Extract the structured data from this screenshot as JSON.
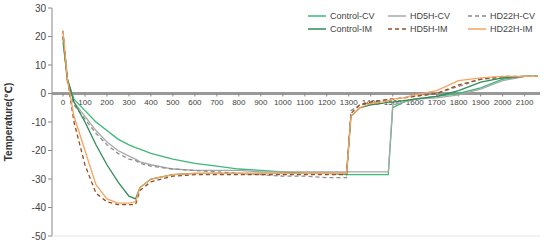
{
  "chart_data": {
    "type": "line",
    "y_label": "Temperature(℃)",
    "x": [
      0,
      20,
      50,
      100,
      150,
      200,
      250,
      300,
      330,
      350,
      400,
      500,
      600,
      700,
      800,
      900,
      1000,
      1100,
      1200,
      1290,
      1310,
      1350,
      1400,
      1450,
      1480,
      1500,
      1550,
      1600,
      1700,
      1800,
      1900,
      2000,
      2100,
      2160
    ],
    "xlim": [
      -50,
      2170
    ],
    "xticks": [
      0,
      100,
      200,
      300,
      400,
      500,
      600,
      700,
      800,
      900,
      1000,
      1100,
      1200,
      1300,
      1400,
      1500,
      1600,
      1700,
      1800,
      1900,
      2000,
      2100
    ],
    "ylim": [
      -50,
      30
    ],
    "yticks": [
      -50,
      -40,
      -30,
      -20,
      -10,
      0,
      10,
      20,
      30
    ],
    "grid": false,
    "legend": "top-right",
    "series": [
      {
        "name": "Control-CV",
        "color": "#3cb878",
        "line_style": "solid",
        "values": [
          18,
          5,
          -2,
          -6,
          -10,
          -13,
          -16,
          -18,
          -19,
          -19.5,
          -21,
          -23,
          -24.5,
          -25.5,
          -26.5,
          -27,
          -27.5,
          -28,
          -28,
          -28.5,
          -28.5,
          -28.5,
          -28.5,
          -28.5,
          -28.5,
          -5,
          -3,
          -2,
          -1,
          0,
          2,
          5,
          6,
          6
        ]
      },
      {
        "name": "HD5H-CV",
        "color": "#a8a8a8",
        "line_style": "solid",
        "values": [
          20,
          5,
          -3,
          -8,
          -13,
          -17,
          -20,
          -22,
          -23,
          -24,
          -25,
          -26.5,
          -27,
          -27,
          -27,
          -27.5,
          -27.5,
          -27.5,
          -27.5,
          -27.5,
          -27.5,
          -27.5,
          -27.5,
          -27.5,
          -27.5,
          -4,
          -3,
          -2,
          -1.5,
          -0.5,
          1.5,
          4.5,
          6,
          6
        ]
      },
      {
        "name": "HD22H-CV",
        "color": "#8c8c8c",
        "line_style": "dashed",
        "values": [
          20,
          4,
          -4,
          -9,
          -14,
          -18,
          -21,
          -23,
          -23.5,
          -24.5,
          -25.5,
          -26.5,
          -27,
          -27.5,
          -28,
          -28.5,
          -29,
          -29,
          -29.5,
          -29.5,
          -6,
          -4,
          -3,
          -2.5,
          -2,
          -2,
          -1.5,
          -1,
          0,
          2.5,
          5,
          5.5,
          6,
          6
        ]
      },
      {
        "name": "Control-IM",
        "color": "#2e8b57",
        "line_style": "solid",
        "values": [
          20,
          5,
          -3,
          -10,
          -18,
          -25,
          -31,
          -36,
          -37,
          -33,
          -30,
          -28.5,
          -28,
          -28,
          -28,
          -28,
          -28,
          -28,
          -28,
          -28,
          -8,
          -5,
          -4,
          -3.5,
          -3,
          -3,
          -2.5,
          -2,
          -1,
          1,
          4,
          5.5,
          6,
          6
        ]
      },
      {
        "name": "HD5H-IM",
        "color": "#9c4a1c",
        "line_style": "dashed",
        "values": [
          22,
          5,
          -10,
          -25,
          -35,
          -38,
          -39,
          -39,
          -39,
          -34,
          -31,
          -29,
          -28.5,
          -28.5,
          -28.5,
          -28.5,
          -28.5,
          -28.5,
          -28.5,
          -28.5,
          -7,
          -4,
          -3,
          -2.5,
          -2,
          -2,
          -1.5,
          -1,
          0,
          3,
          5,
          6,
          6,
          6
        ]
      },
      {
        "name": "HD22H-IM",
        "color": "#f4a460",
        "line_style": "solid",
        "values": [
          22,
          5,
          -8,
          -20,
          -32,
          -37,
          -38.5,
          -38.5,
          -38,
          -33,
          -30,
          -28.5,
          -28,
          -28,
          -28,
          -28,
          -28,
          -28,
          -28,
          -28,
          -8,
          -5,
          -3.5,
          -3,
          -2.5,
          -2,
          -1.5,
          -0.5,
          1,
          4.5,
          5.5,
          6,
          6,
          6
        ]
      }
    ]
  }
}
